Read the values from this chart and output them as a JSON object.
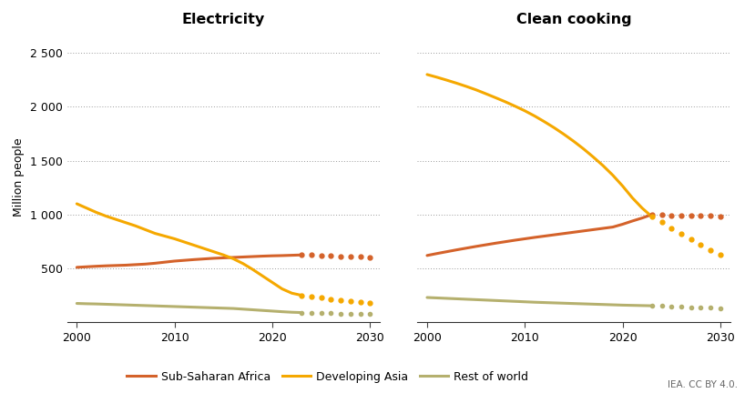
{
  "electricity": {
    "years_solid": [
      2000,
      2001,
      2002,
      2003,
      2004,
      2005,
      2006,
      2007,
      2008,
      2009,
      2010,
      2011,
      2012,
      2013,
      2014,
      2015,
      2016,
      2017,
      2018,
      2019,
      2020,
      2021,
      2022,
      2023
    ],
    "ssa_solid": [
      510,
      515,
      520,
      524,
      527,
      530,
      535,
      540,
      548,
      558,
      568,
      575,
      582,
      588,
      594,
      598,
      602,
      606,
      610,
      614,
      617,
      619,
      622,
      625
    ],
    "asia_solid": [
      1100,
      1060,
      1020,
      985,
      955,
      925,
      895,
      860,
      825,
      800,
      775,
      745,
      715,
      685,
      655,
      625,
      590,
      545,
      490,
      430,
      370,
      310,
      270,
      250
    ],
    "row_solid": [
      175,
      172,
      170,
      167,
      164,
      161,
      158,
      155,
      152,
      149,
      146,
      143,
      140,
      137,
      134,
      131,
      128,
      122,
      116,
      110,
      104,
      98,
      93,
      90
    ],
    "years_dot": [
      2023,
      2024,
      2025,
      2026,
      2027,
      2028,
      2029,
      2030
    ],
    "ssa_dot": [
      625,
      625,
      622,
      618,
      614,
      610,
      606,
      600
    ],
    "asia_dot": [
      250,
      240,
      228,
      216,
      205,
      195,
      186,
      178
    ],
    "row_dot": [
      90,
      88,
      85,
      83,
      81,
      79,
      77,
      75
    ]
  },
  "clean_cooking": {
    "years_solid": [
      2000,
      2001,
      2002,
      2003,
      2004,
      2005,
      2006,
      2007,
      2008,
      2009,
      2010,
      2011,
      2012,
      2013,
      2014,
      2015,
      2016,
      2017,
      2018,
      2019,
      2020,
      2021,
      2022,
      2023
    ],
    "ssa_solid": [
      620,
      638,
      655,
      672,
      688,
      704,
      719,
      734,
      748,
      762,
      775,
      788,
      800,
      812,
      824,
      836,
      848,
      860,
      872,
      884,
      910,
      940,
      968,
      1000
    ],
    "asia_solid": [
      2300,
      2275,
      2248,
      2220,
      2190,
      2158,
      2122,
      2085,
      2047,
      2006,
      1963,
      1915,
      1862,
      1806,
      1745,
      1680,
      1610,
      1534,
      1454,
      1365,
      1265,
      1155,
      1060,
      980
    ],
    "row_solid": [
      230,
      226,
      222,
      218,
      214,
      210,
      206,
      202,
      198,
      194,
      190,
      186,
      183,
      180,
      177,
      174,
      171,
      168,
      165,
      162,
      159,
      157,
      155,
      153
    ],
    "years_dot": [
      2023,
      2024,
      2025,
      2026,
      2027,
      2028,
      2029,
      2030
    ],
    "ssa_dot": [
      1000,
      997,
      994,
      992,
      990,
      988,
      986,
      984
    ],
    "asia_dot": [
      980,
      930,
      875,
      820,
      768,
      718,
      672,
      630
    ],
    "row_dot": [
      153,
      150,
      147,
      144,
      141,
      138,
      135,
      132
    ]
  },
  "colors": {
    "ssa": "#d4622a",
    "asia": "#f5a800",
    "row": "#b5b06e"
  },
  "grid_color": "#999999",
  "title_electricity": "Electricity",
  "title_clean_cooking": "Clean cooking",
  "ylabel": "Million people",
  "ylim": [
    0,
    2700
  ],
  "yticks": [
    0,
    500,
    1000,
    1500,
    2000,
    2500
  ],
  "ytick_labels": [
    "",
    "500",
    "1 000",
    "1 500",
    "2 000",
    "2 500"
  ],
  "xlim": [
    1999,
    2031
  ],
  "xticks": [
    2000,
    2010,
    2020,
    2030
  ],
  "legend_labels": [
    "Sub-Saharan Africa",
    "Developing Asia",
    "Rest of world"
  ],
  "credit": "IEA. CC BY 4.0."
}
